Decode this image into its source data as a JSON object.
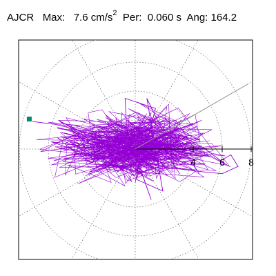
{
  "header": {
    "station": "AJCR",
    "max_label": "Max:",
    "max_value": "7.6",
    "max_unit": "cm/s",
    "max_unit_exp": "2",
    "per_label": "Per:",
    "per_value": "0.060 s",
    "ang_label": "Ang:",
    "ang_value": "164.2"
  },
  "chart_data": {
    "type": "line",
    "coordinate_system": "polar",
    "radial_unit": "cm/s^2",
    "radial_ticks": [
      4,
      6,
      8
    ],
    "ring_values": [
      2,
      4,
      6,
      8
    ],
    "spoke_step_deg": 30,
    "angular_marker_deg": 30,
    "max_point": {
      "r": 7.6,
      "angle_deg": 164.2
    },
    "trace_color": "#9400d3",
    "marker_color": "#008b6b",
    "grid": "dotted",
    "series": [
      {
        "type": "trajectory",
        "x": [
          -7.1,
          -5.5,
          -3.9,
          -2.7,
          -3.6,
          -5.8,
          -2.6,
          -1.3,
          0.5,
          1.1,
          -0.6,
          -0.7,
          1.4,
          0.1,
          1.9,
          0.8,
          2.6,
          3.0,
          3.6,
          4.7,
          5.9,
          6.6,
          7.1,
          6.0,
          4.9,
          2.4,
          0.1,
          -2.0,
          -3.2,
          -1.1,
          2.0,
          -0.6,
          2.3,
          -0.4,
          -1.5
        ],
        "y": [
          1.9,
          1.7,
          1.3,
          1.0,
          0.2,
          0.5,
          -0.6,
          -0.2,
          -1.8,
          -3.5,
          1.4,
          3.5,
          2.8,
          -2.1,
          -2.9,
          3.5,
          -0.2,
          -0.8,
          0.5,
          0.1,
          -0.8,
          -0.4,
          -1.2,
          -1.7,
          -1.6,
          -1.3,
          -0.8,
          -0.9,
          -1.6,
          -1.0,
          0.3,
          2.0,
          -0.3,
          1.2,
          0.0
        ]
      }
    ]
  }
}
